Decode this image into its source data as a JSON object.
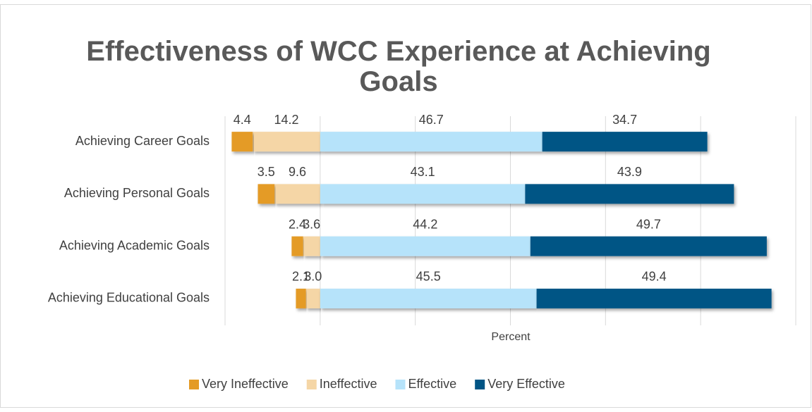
{
  "chart_data": {
    "type": "diverging_stacked_bar",
    "title": "Effectiveness of WCC Experience at Achieving Goals",
    "x_label": "Percent",
    "categories": [
      "Achieving Career Goals",
      "Achieving Personal Goals",
      "Achieving Academic Goals",
      "Achieving Educational Goals"
    ],
    "series": [
      {
        "name": "Very Ineffective",
        "color": "#E49B26",
        "side": "negative",
        "values": [
          4.4,
          3.5,
          2.4,
          2.1
        ]
      },
      {
        "name": "Ineffective",
        "color": "#F5D6A6",
        "side": "negative",
        "values": [
          14.2,
          9.6,
          3.6,
          3.0
        ],
        "value_labels": [
          "14.2",
          "9.6",
          "3.6",
          "3.0"
        ]
      },
      {
        "name": "Effective",
        "color": "#B6E3FA",
        "side": "positive",
        "values": [
          46.7,
          43.1,
          44.2,
          45.5
        ]
      },
      {
        "name": "Very Effective",
        "color": "#005585",
        "side": "positive",
        "values": [
          34.7,
          43.9,
          49.7,
          49.4
        ]
      }
    ],
    "xlim": [
      -20,
      100
    ],
    "xticks": [
      -20,
      0,
      20,
      40,
      60,
      80,
      100
    ],
    "grid": true,
    "legend": "bottom"
  }
}
